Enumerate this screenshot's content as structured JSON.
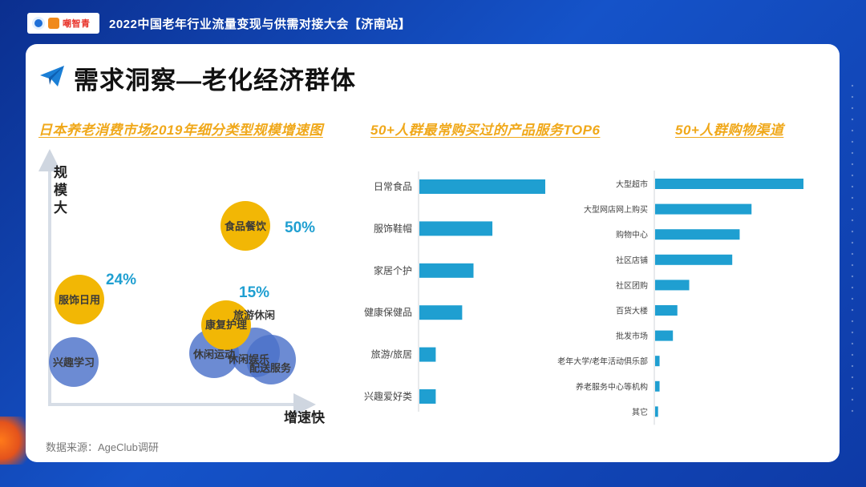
{
  "header": {
    "conference_title": "2022中国老年行业流量变现与供需对接大会【济南站】",
    "logo_text": "嘲智青"
  },
  "page": {
    "heading": "需求洞察—老化经济群体",
    "source": "数据来源：AgeClub调研"
  },
  "colors": {
    "accent_gold": "#f2b705",
    "bubble_blue": "#4c72c9",
    "bar_blue": "#1f9fd1",
    "pct_blue": "#1f9fd1"
  },
  "chart_data": [
    {
      "type": "scatter",
      "title": "日本养老消费市场2019年细分类型规模增速图",
      "ylabel": "规模大",
      "xlabel": "增速快",
      "bubbles": [
        {
          "label": "食品餐饮",
          "color": "gold",
          "pct": "50%"
        },
        {
          "label": "服饰日用",
          "color": "gold",
          "pct": "24%"
        },
        {
          "label": "康复护理",
          "color": "gold",
          "pct": "15%"
        },
        {
          "label": "旅游休闲",
          "color": "blue",
          "pct": ""
        },
        {
          "label": "兴趣学习",
          "color": "blue",
          "pct": ""
        },
        {
          "label": "休闲运动",
          "color": "blue",
          "pct": ""
        },
        {
          "label": "休闲娱乐",
          "color": "blue",
          "pct": ""
        },
        {
          "label": "配送服务",
          "color": "blue",
          "pct": ""
        }
      ]
    },
    {
      "type": "bar",
      "orientation": "horizontal",
      "title": "50+人群最常购买过的产品服务TOP6",
      "categories": [
        "日常食品",
        "服饰鞋帽",
        "家居个护",
        "健康保健品",
        "旅游/旅居",
        "兴趣爱好类"
      ],
      "values": [
        100,
        58,
        43,
        34,
        13,
        13
      ]
    },
    {
      "type": "bar",
      "orientation": "horizontal",
      "title": "50+人群购物渠道",
      "categories": [
        "大型超市",
        "大型网店网上购买",
        "购物中心",
        "社区店铺",
        "社区团购",
        "百货大楼",
        "批发市场",
        "老年大学/老年活动俱乐部",
        "养老服务中心等机构",
        "其它"
      ],
      "values": [
        100,
        65,
        57,
        52,
        23,
        15,
        12,
        3,
        3,
        2
      ]
    }
  ]
}
